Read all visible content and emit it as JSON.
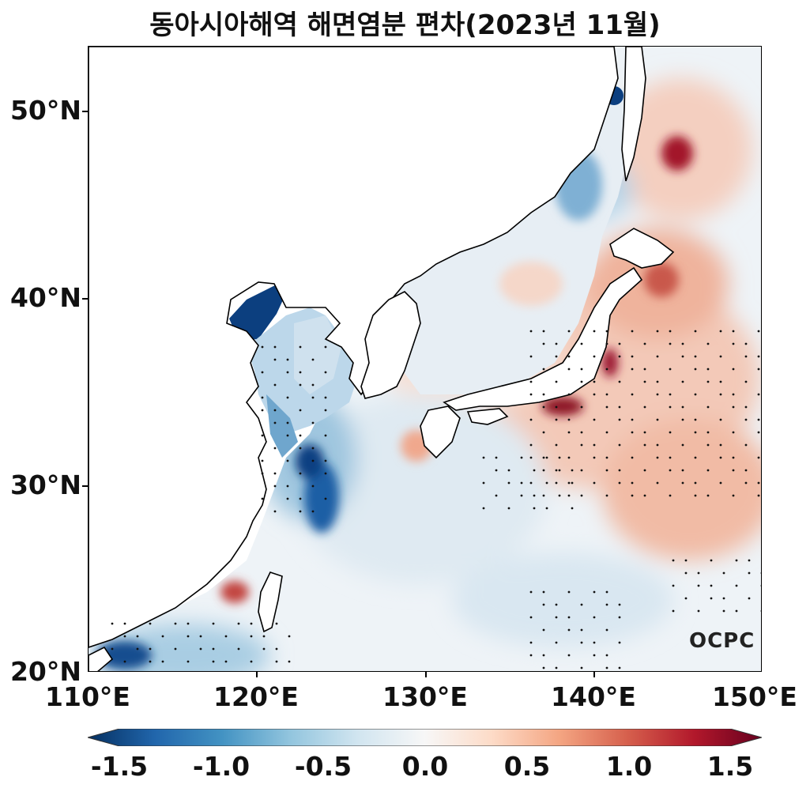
{
  "title": "동아시아해역 해면염분 편차(2023년 11월)",
  "y_axis": [
    "50°N",
    "40°N",
    "30°N",
    "20°N"
  ],
  "x_axis": [
    "110°E",
    "120°E",
    "130°E",
    "140°E",
    "150°E"
  ],
  "colorbar": {
    "ticks": [
      "-1.5",
      "-1.0",
      "-0.5",
      "0.0",
      "0.5",
      "1.0",
      "1.5"
    ],
    "min": -1.5,
    "max": 1.5,
    "colors": [
      "#053061",
      "#2166ac",
      "#4393c3",
      "#92c5de",
      "#d1e5f0",
      "#f7f7f7",
      "#fddbc7",
      "#f4a582",
      "#d6604d",
      "#b2182b",
      "#67001f"
    ]
  },
  "logo": "OCPC"
}
